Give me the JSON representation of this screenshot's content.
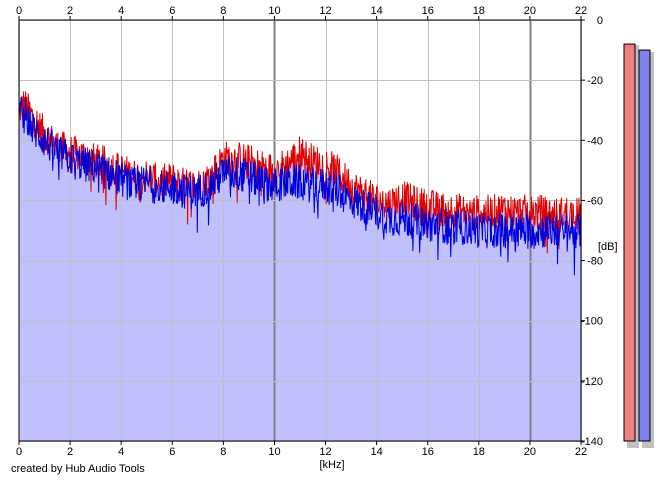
{
  "app": {
    "credit": "created by Hub Audio Tools"
  },
  "colors": {
    "fill": "#c0c0ff",
    "left_channel": "#e00000",
    "right_channel": "#0000dd",
    "grid_major": "#808080",
    "grid_minor": "#c0c0c0",
    "meter_left": "#f08080",
    "meter_right": "#8080ee"
  },
  "meters": {
    "left_level_db": -8,
    "right_level_db": -10
  },
  "chart_data": {
    "type": "line",
    "xlabel": "[kHz]",
    "ylabel": "[dB]",
    "xlim": [
      0,
      22
    ],
    "ylim": [
      -140,
      0
    ],
    "x_ticks": [
      "0",
      "2",
      "4",
      "6",
      "8",
      "10",
      "12",
      "14",
      "16",
      "18",
      "20",
      "22"
    ],
    "y_ticks": [
      "0",
      "-20",
      "-40",
      "-60",
      "-80",
      "-100",
      "-120",
      "-140"
    ],
    "grid": true,
    "series": [
      {
        "channel": "left",
        "x": [
          0.0,
          0.2,
          0.5,
          1.0,
          1.5,
          2.0,
          2.5,
          3.0,
          3.5,
          4.0,
          4.5,
          5.0,
          5.5,
          6.0,
          6.5,
          7.0,
          7.5,
          8.0,
          8.5,
          9.0,
          9.5,
          10.0,
          10.5,
          11.0,
          11.5,
          12.0,
          12.5,
          13.0,
          13.5,
          14.0,
          14.5,
          15.0,
          15.5,
          16.0,
          16.5,
          17.0,
          17.5,
          18.0,
          18.5,
          19.0,
          19.5,
          20.0,
          20.5,
          21.0,
          21.5,
          22.0
        ],
        "values": [
          -30,
          -28,
          -32,
          -38,
          -42,
          -44,
          -45,
          -47,
          -48,
          -50,
          -52,
          -52,
          -54,
          -53,
          -55,
          -55,
          -52,
          -46,
          -46,
          -47,
          -49,
          -50,
          -48,
          -44,
          -47,
          -48,
          -51,
          -55,
          -58,
          -60,
          -61,
          -59,
          -61,
          -62,
          -63,
          -63,
          -64,
          -64,
          -64,
          -63,
          -64,
          -64,
          -64,
          -65,
          -64,
          -65
        ]
      },
      {
        "channel": "right",
        "x": [
          0.0,
          0.2,
          0.5,
          1.0,
          1.5,
          2.0,
          2.5,
          3.0,
          3.5,
          4.0,
          4.5,
          5.0,
          5.5,
          6.0,
          6.5,
          7.0,
          7.5,
          8.0,
          8.5,
          9.0,
          9.5,
          10.0,
          10.5,
          11.0,
          11.5,
          12.0,
          12.5,
          13.0,
          13.5,
          14.0,
          14.5,
          15.0,
          15.5,
          16.0,
          16.5,
          17.0,
          17.5,
          18.0,
          18.5,
          19.0,
          19.5,
          20.0,
          20.5,
          21.0,
          21.5,
          22.0
        ],
        "values": [
          -32,
          -30,
          -36,
          -40,
          -44,
          -46,
          -48,
          -49,
          -51,
          -53,
          -55,
          -54,
          -56,
          -55,
          -57,
          -57,
          -55,
          -51,
          -51,
          -52,
          -54,
          -55,
          -54,
          -54,
          -55,
          -55,
          -57,
          -60,
          -62,
          -64,
          -66,
          -66,
          -67,
          -68,
          -68,
          -69,
          -69,
          -70,
          -70,
          -70,
          -70,
          -70,
          -70,
          -70,
          -70,
          -70
        ]
      }
    ],
    "fill_under": true
  }
}
